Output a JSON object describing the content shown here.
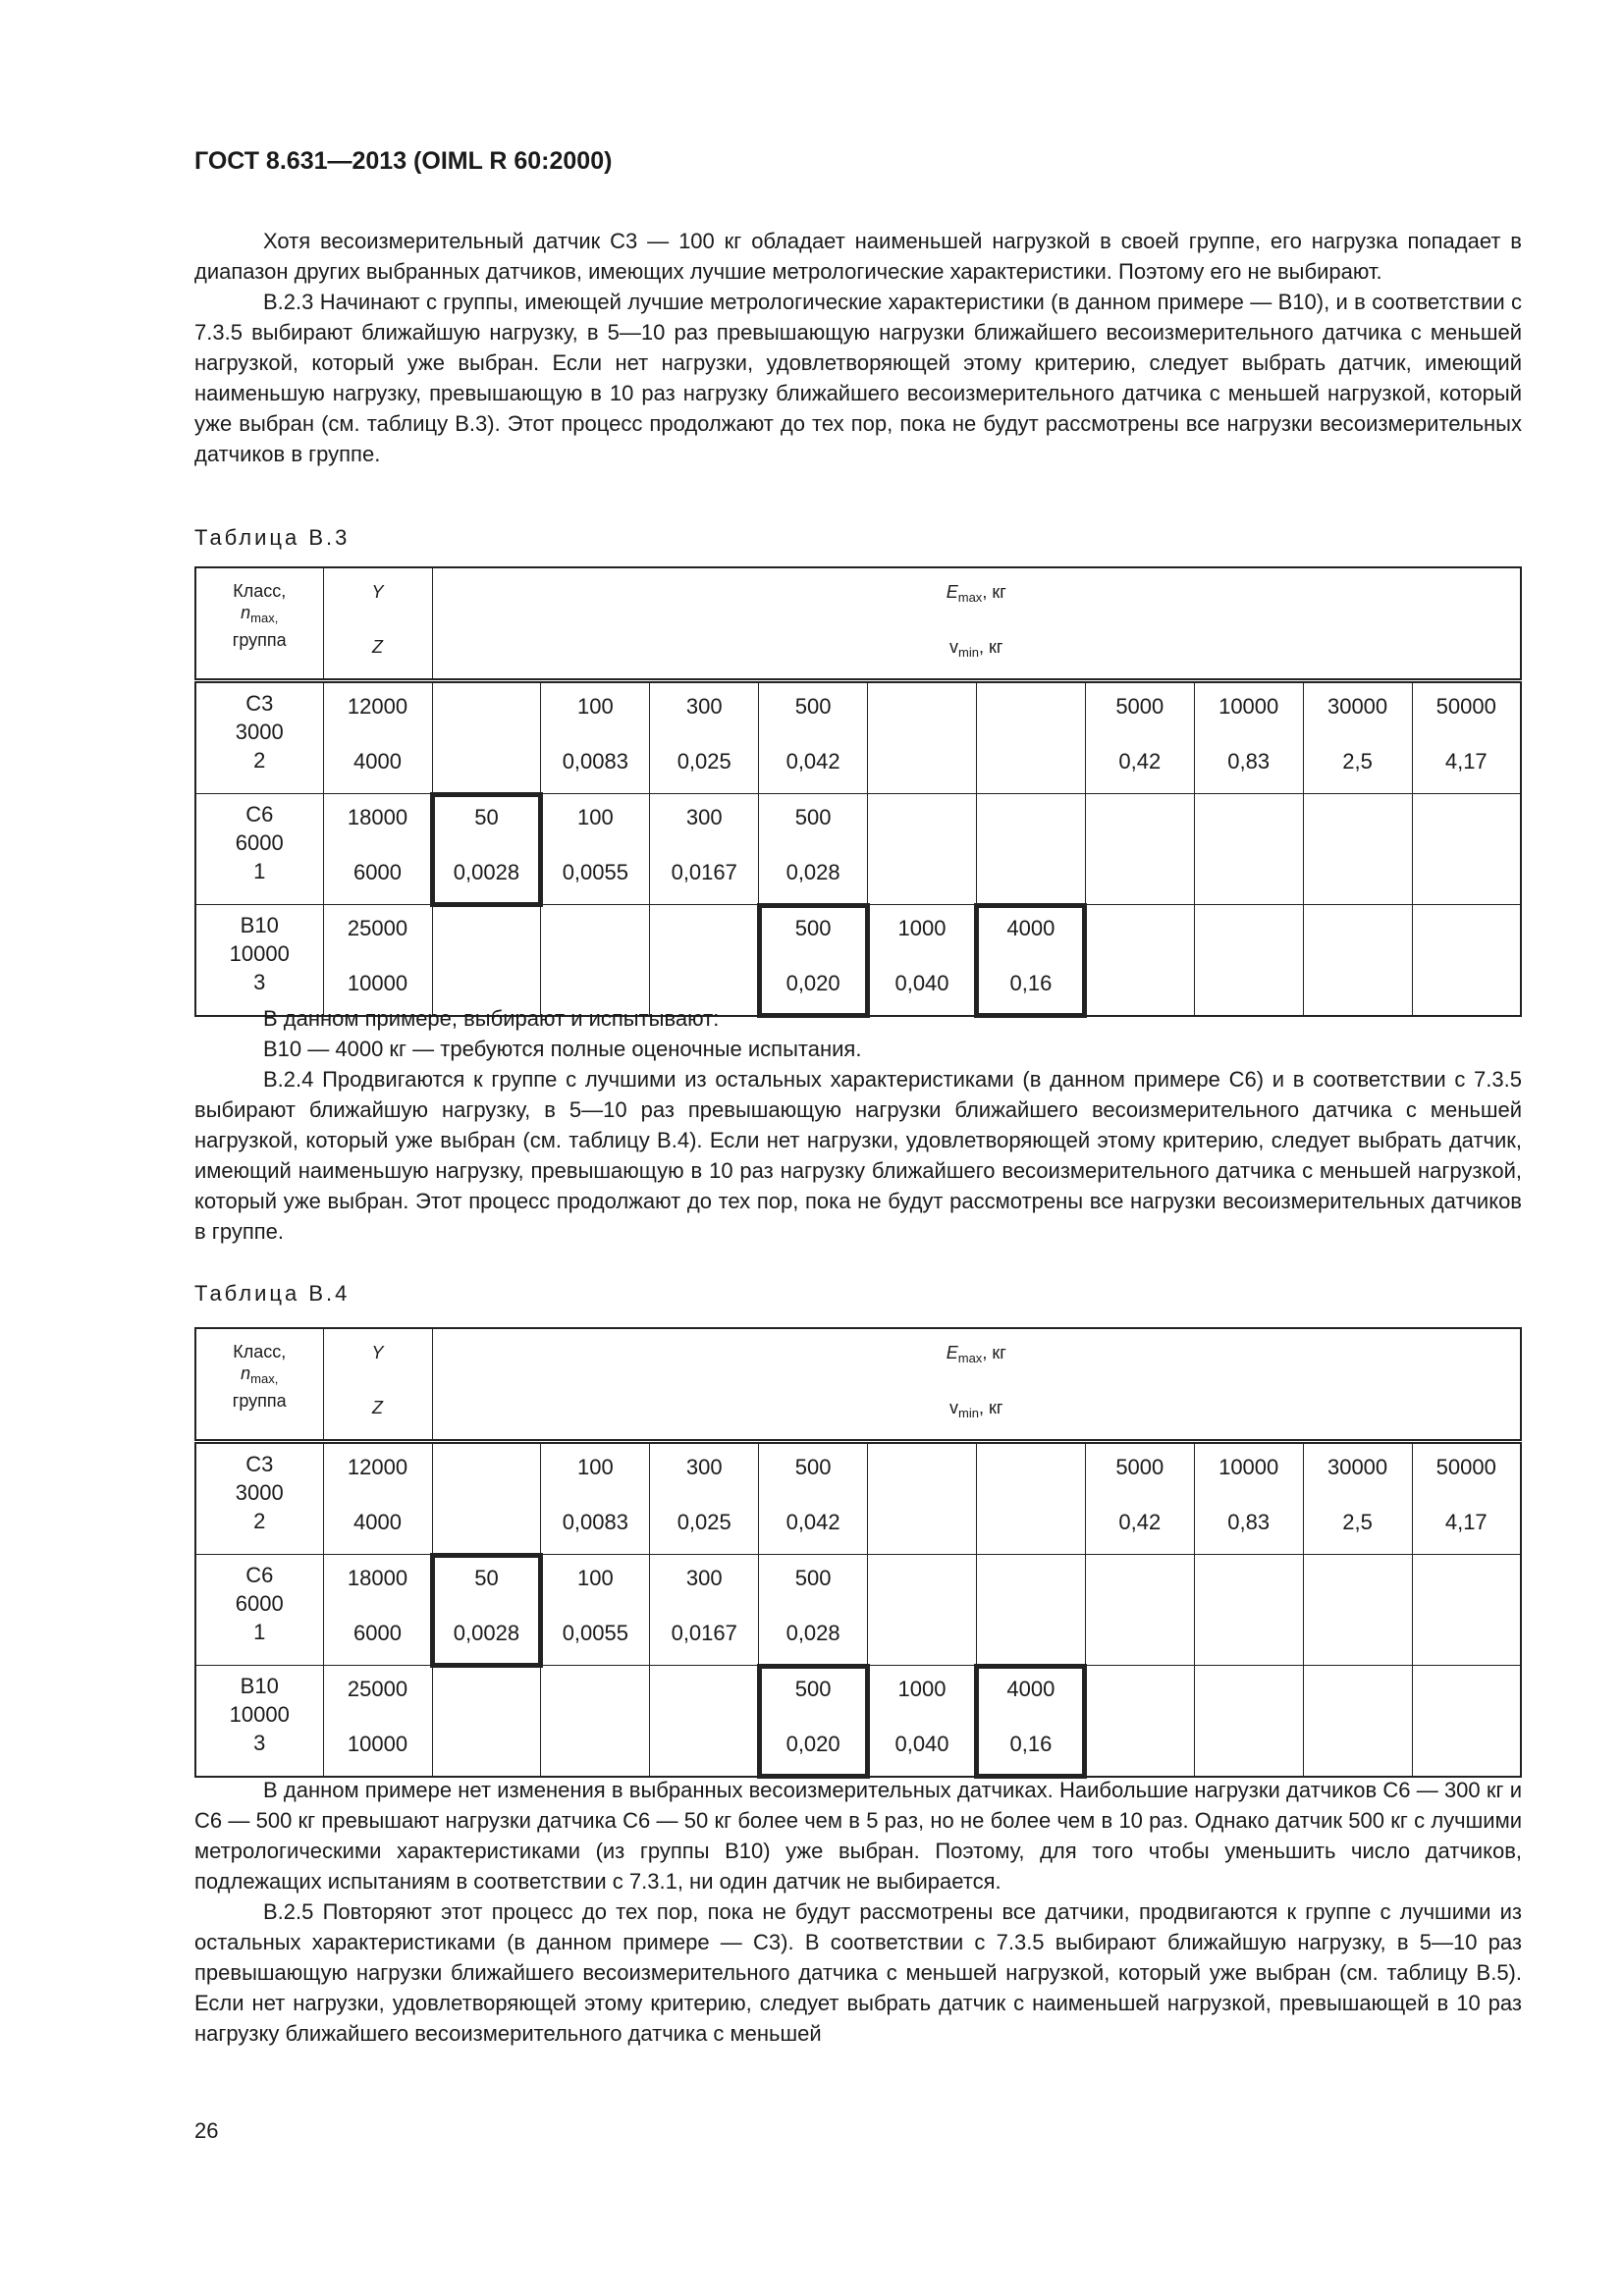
{
  "header": {
    "title": "ГОСТ 8.631—2013 (OIML R 60:2000)"
  },
  "section1": {
    "paragraphs": [
      "Хотя весоизмерительный датчик С3 — 100 кг обладает наименьшей нагрузкой в своей группе, его нагрузка попадает в диапазон других выбранных датчиков, имеющих лучшие метрологические характеристики. Поэтому его не выбирают.",
      "В.2.3  Начинают с группы, имеющей лучшие метрологические характеристики (в данном примере — В10), и в соответствии с 7.3.5 выбирают ближайшую нагрузку, в 5—10 раз превышающую нагрузки ближайшего весоизмерительного датчика с меньшей нагрузкой, который уже выбран. Если нет нагрузки, удовлетворяющей этому критерию, следует выбрать датчик, имеющий наименьшую нагрузку, превышающую в 10 раз нагрузку ближайшего весоизмерительного датчика с меньшей нагрузкой, который уже выбран (см. таблицу В.3). Этот процесс продолжают до тех пор, пока не будут рассмотрены все нагрузки весоизмерительных датчиков в группе."
    ]
  },
  "tables": [
    {
      "caption": "Таблица В.3",
      "head": {
        "c1": "Класс,",
        "c2": "n",
        "c2sub": "max,",
        "c3": "группа",
        "y": "Y",
        "z": "Z",
        "emax": "E",
        "emax_sub": "max",
        "emax_unit": ", кг",
        "vmin": "v",
        "vmin_sub": "min",
        "vmin_unit": ", кг"
      },
      "rows": [
        {
          "cls": [
            "С3",
            "3000",
            "2"
          ],
          "y": "12000",
          "z": "4000",
          "cells": [
            [
              "",
              ""
            ],
            [
              "100",
              "0,0083"
            ],
            [
              "300",
              "0,025"
            ],
            [
              "500",
              "0,042"
            ],
            [
              "",
              ""
            ],
            [
              "",
              ""
            ],
            [
              "5000",
              "0,42"
            ],
            [
              "10000",
              "0,83"
            ],
            [
              "30000",
              "2,5"
            ],
            [
              "50000",
              "4,17"
            ]
          ],
          "selected": []
        },
        {
          "cls": [
            "С6",
            "6000",
            "1"
          ],
          "y": "18000",
          "z": "6000",
          "cells": [
            [
              "50",
              "0,0028"
            ],
            [
              "100",
              "0,0055"
            ],
            [
              "300",
              "0,0167"
            ],
            [
              "500",
              "0,028"
            ],
            [
              "",
              ""
            ],
            [
              "",
              ""
            ],
            [
              "",
              ""
            ],
            [
              "",
              ""
            ],
            [
              "",
              ""
            ],
            [
              "",
              ""
            ]
          ],
          "selected": [
            0
          ]
        },
        {
          "cls": [
            "В10",
            "10000",
            "3"
          ],
          "y": "25000",
          "z": "10000",
          "cells": [
            [
              "",
              ""
            ],
            [
              "",
              ""
            ],
            [
              "",
              ""
            ],
            [
              "500",
              "0,020"
            ],
            [
              "1000",
              "0,040"
            ],
            [
              "4000",
              "0,16"
            ],
            [
              "",
              ""
            ],
            [
              "",
              ""
            ],
            [
              "",
              ""
            ],
            [
              "",
              ""
            ]
          ],
          "selected": [
            3,
            5
          ]
        }
      ]
    },
    {
      "caption": "Таблица В.4",
      "head": {
        "c1": "Класс,",
        "c2": "n",
        "c2sub": "max,",
        "c3": "группа",
        "y": "Y",
        "z": "Z",
        "emax": "E",
        "emax_sub": "max",
        "emax_unit": ", кг",
        "vmin": "v",
        "vmin_sub": "min",
        "vmin_unit": ", кг"
      },
      "rows": [
        {
          "cls": [
            "С3",
            "3000",
            "2"
          ],
          "y": "12000",
          "z": "4000",
          "cells": [
            [
              "",
              ""
            ],
            [
              "100",
              "0,0083"
            ],
            [
              "300",
              "0,025"
            ],
            [
              "500",
              "0,042"
            ],
            [
              "",
              ""
            ],
            [
              "",
              ""
            ],
            [
              "5000",
              "0,42"
            ],
            [
              "10000",
              "0,83"
            ],
            [
              "30000",
              "2,5"
            ],
            [
              "50000",
              "4,17"
            ]
          ],
          "selected": []
        },
        {
          "cls": [
            "С6",
            "6000",
            "1"
          ],
          "y": "18000",
          "z": "6000",
          "cells": [
            [
              "50",
              "0,0028"
            ],
            [
              "100",
              "0,0055"
            ],
            [
              "300",
              "0,0167"
            ],
            [
              "500",
              "0,028"
            ],
            [
              "",
              ""
            ],
            [
              "",
              ""
            ],
            [
              "",
              ""
            ],
            [
              "",
              ""
            ],
            [
              "",
              ""
            ],
            [
              "",
              ""
            ]
          ],
          "selected": [
            0
          ]
        },
        {
          "cls": [
            "В10",
            "10000",
            "3"
          ],
          "y": "25000",
          "z": "10000",
          "cells": [
            [
              "",
              ""
            ],
            [
              "",
              ""
            ],
            [
              "",
              ""
            ],
            [
              "500",
              "0,020"
            ],
            [
              "1000",
              "0,040"
            ],
            [
              "4000",
              "0,16"
            ],
            [
              "",
              ""
            ],
            [
              "",
              ""
            ],
            [
              "",
              ""
            ],
            [
              "",
              ""
            ]
          ],
          "selected": [
            3,
            5
          ]
        }
      ]
    }
  ],
  "section2": {
    "paragraphs": [
      "В данном примере, выбирают и испытывают:",
      "В10 — 4000 кг — требуются полные оценочные испытания.",
      "В.2.4  Продвигаются к группе с лучшими из остальных характеристиками (в данном примере С6) и в соответствии с 7.3.5 выбирают ближайшую нагрузку, в 5—10 раз превышающую нагрузки ближайшего весоизмерительного датчика с меньшей нагрузкой, который уже выбран (см. таблицу В.4). Если нет нагрузки, удовлетворяющей этому критерию, следует выбрать датчик, имеющий наименьшую нагрузку, превышающую в 10 раз нагрузку ближайшего весоизмерительного датчика с меньшей нагрузкой, который уже выбран. Этот процесс продолжают до тех пор, пока не будут рассмотрены все нагрузки весоизмерительных датчиков в группе."
    ]
  },
  "section3": {
    "paragraphs": [
      "В данном примере нет изменения в выбранных весоизмерительных датчиках. Наибольшие нагрузки датчиков С6 — 300 кг и С6 — 500 кг превышают нагрузки датчика С6 — 50 кг более чем в 5 раз, но не более чем в 10 раз. Однако датчик 500 кг с лучшими метрологическими характеристиками (из группы В10) уже выбран. Поэтому, для того чтобы уменьшить число датчиков, подлежащих испытаниям в соответствии с 7.3.1, ни один датчик не выбирается.",
      "В.2.5  Повторяют этот процесс до тех пор, пока не будут рассмотрены все датчики, продвигаются к группе с лучшими из остальных характеристиками (в данном примере — С3). В соответствии с 7.3.5 выбирают ближайшую нагрузку, в 5—10 раз превышающую нагрузки ближайшего весоизмерительного датчика с меньшей нагрузкой, который уже выбран (см. таблицу В.5). Если нет нагрузки, удовлетворяющей этому критерию, следует выбрать датчик с наименьшей нагрузкой, превышающей в 10 раз нагрузку ближайшего весоизмерительного датчика с меньшей"
    ]
  },
  "footer": {
    "page_number": "26"
  }
}
